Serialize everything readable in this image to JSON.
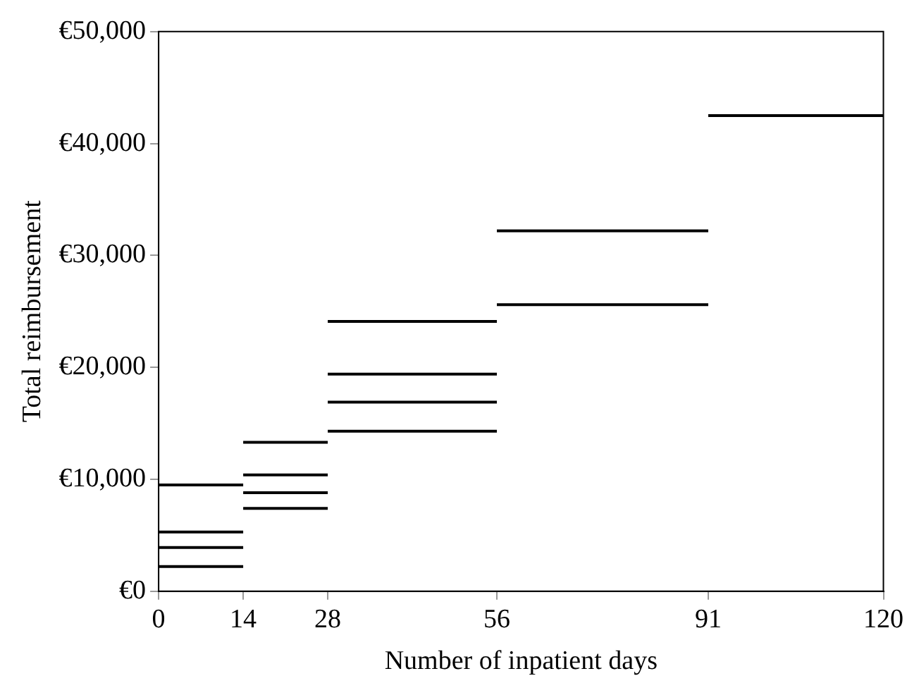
{
  "chart_data": {
    "type": "line",
    "xlabel": "Number of inpatient days",
    "ylabel": "Total reimbursement",
    "xlim": [
      0,
      120
    ],
    "xticks": [
      0,
      14,
      28,
      56,
      91,
      120
    ],
    "ylim": [
      0,
      50000
    ],
    "yticks": [
      {
        "value": 0,
        "label": "€0"
      },
      {
        "value": 10000,
        "label": "€10,000"
      },
      {
        "value": 20000,
        "label": "€20,000"
      },
      {
        "value": 30000,
        "label": "€30,000"
      },
      {
        "value": 40000,
        "label": "€40,000"
      },
      {
        "value": 50000,
        "label": "€50,000"
      }
    ],
    "grid": false,
    "legend": false,
    "marker": "none",
    "line_style": "solid",
    "series": [
      {
        "color": "#000000",
        "x": [
          0,
          14
        ],
        "values": [
          9500,
          9500
        ]
      },
      {
        "color": "#000000",
        "x": [
          0,
          14
        ],
        "values": [
          5300,
          5300
        ]
      },
      {
        "color": "#000000",
        "x": [
          0,
          14
        ],
        "values": [
          3900,
          3900
        ]
      },
      {
        "color": "#000000",
        "x": [
          0,
          14
        ],
        "values": [
          2200,
          2200
        ]
      },
      {
        "color": "#000000",
        "x": [
          14,
          28
        ],
        "values": [
          13300,
          13300
        ]
      },
      {
        "color": "#000000",
        "x": [
          14,
          28
        ],
        "values": [
          10400,
          10400
        ]
      },
      {
        "color": "#000000",
        "x": [
          14,
          28
        ],
        "values": [
          8800,
          8800
        ]
      },
      {
        "color": "#000000",
        "x": [
          14,
          28
        ],
        "values": [
          7400,
          7400
        ]
      },
      {
        "color": "#000000",
        "x": [
          28,
          56
        ],
        "values": [
          24100,
          24100
        ]
      },
      {
        "color": "#000000",
        "x": [
          28,
          56
        ],
        "values": [
          19400,
          19400
        ]
      },
      {
        "color": "#000000",
        "x": [
          28,
          56
        ],
        "values": [
          16900,
          16900
        ]
      },
      {
        "color": "#000000",
        "x": [
          28,
          56
        ],
        "values": [
          14300,
          14300
        ]
      },
      {
        "color": "#000000",
        "x": [
          56,
          91
        ],
        "values": [
          32200,
          32200
        ]
      },
      {
        "color": "#000000",
        "x": [
          56,
          91
        ],
        "values": [
          25600,
          25600
        ]
      },
      {
        "color": "#000000",
        "x": [
          91,
          120
        ],
        "values": [
          42500,
          42500
        ]
      }
    ]
  }
}
